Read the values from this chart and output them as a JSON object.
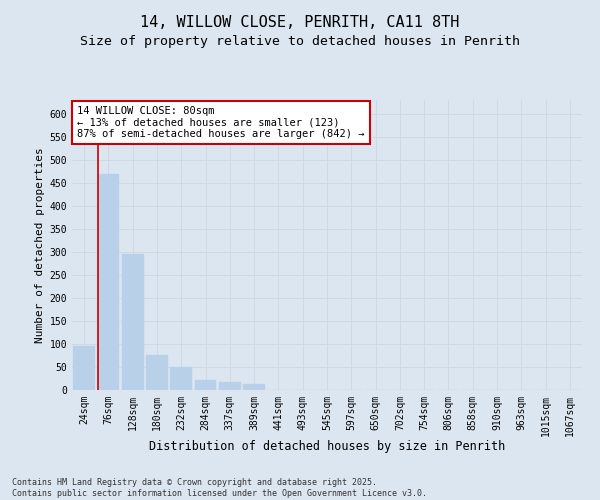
{
  "title": "14, WILLOW CLOSE, PENRITH, CA11 8TH",
  "subtitle": "Size of property relative to detached houses in Penrith",
  "xlabel": "Distribution of detached houses by size in Penrith",
  "ylabel": "Number of detached properties",
  "footer_line1": "Contains HM Land Registry data © Crown copyright and database right 2025.",
  "footer_line2": "Contains public sector information licensed under the Open Government Licence v3.0.",
  "bin_labels": [
    "24sqm",
    "76sqm",
    "128sqm",
    "180sqm",
    "232sqm",
    "284sqm",
    "337sqm",
    "389sqm",
    "441sqm",
    "493sqm",
    "545sqm",
    "597sqm",
    "650sqm",
    "702sqm",
    "754sqm",
    "806sqm",
    "858sqm",
    "910sqm",
    "963sqm",
    "1015sqm",
    "1067sqm"
  ],
  "bar_values": [
    95,
    470,
    295,
    75,
    50,
    22,
    18,
    14,
    1,
    0,
    1,
    0,
    0,
    0,
    0,
    0,
    0,
    0,
    0,
    1,
    0
  ],
  "bar_color": "#b8d0e8",
  "bar_edge_color": "#b8d0e8",
  "grid_color": "#d0d8e4",
  "background_color": "#dce6f0",
  "annotation_text": "14 WILLOW CLOSE: 80sqm\n← 13% of detached houses are smaller (123)\n87% of semi-detached houses are larger (842) →",
  "annotation_box_color": "#ffffff",
  "annotation_border_color": "#cc0000",
  "vline_color": "#cc0000",
  "ylim": [
    0,
    630
  ],
  "yticks": [
    0,
    50,
    100,
    150,
    200,
    250,
    300,
    350,
    400,
    450,
    500,
    550,
    600
  ],
  "title_fontsize": 11,
  "subtitle_fontsize": 9.5,
  "xlabel_fontsize": 8.5,
  "ylabel_fontsize": 8,
  "tick_fontsize": 7,
  "annotation_fontsize": 7.5,
  "footer_fontsize": 6
}
